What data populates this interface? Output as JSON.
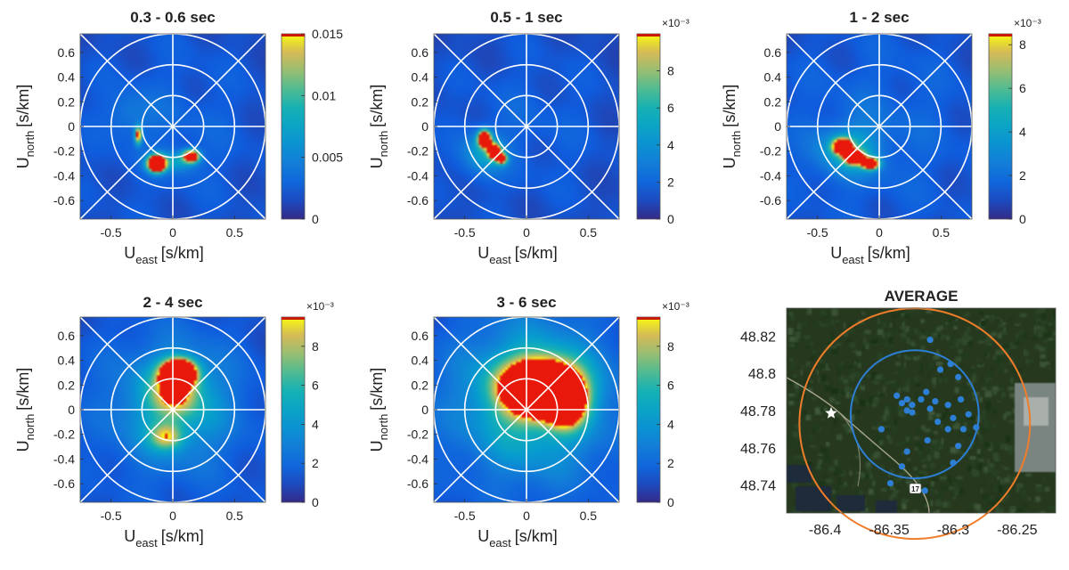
{
  "chart_data": [
    {
      "type": "heatmap",
      "title": "0.3 - 0.6 sec",
      "title_color": "#1560a8",
      "xlabel": "U",
      "xlabel_sub": "east",
      "xlabel_unit": "[s/km]",
      "ylabel": "U",
      "ylabel_sub": "north",
      "ylabel_unit": "[s/km]",
      "xlim": [
        -0.75,
        0.75
      ],
      "ylim": [
        -0.75,
        0.75
      ],
      "x_ticks": [
        -0.5,
        0,
        0.5
      ],
      "x_tick_labels": [
        "-0.5",
        "0",
        "0.5"
      ],
      "y_ticks": [
        0.6,
        0.4,
        0.2,
        0,
        -0.2,
        -0.4,
        -0.6
      ],
      "y_tick_labels": [
        "0.6",
        "0.4",
        "0.2",
        "0",
        "-0.2",
        "-0.4",
        "-0.6"
      ],
      "colorbar": {
        "min": 0,
        "max": 0.015,
        "ticks": [
          0.015,
          0.01,
          0.005,
          0
        ],
        "tick_labels": [
          "0.015",
          "0.01",
          "0.005",
          "0"
        ],
        "exponent_label": ""
      },
      "grid": {
        "rings": [
          0.25,
          0.5,
          0.75
        ],
        "spokes_deg": [
          0,
          45,
          90,
          135
        ]
      },
      "background_level": 0.27,
      "peaks": [
        {
          "x": -0.13,
          "y": -0.3,
          "amplitude": 1.9,
          "sigma_x": 0.05,
          "sigma_y": 0.045
        },
        {
          "x": 0.15,
          "y": -0.24,
          "amplitude": 1.3,
          "sigma_x": 0.045,
          "sigma_y": 0.035
        },
        {
          "x": -0.28,
          "y": -0.07,
          "amplitude": 0.95,
          "sigma_x": 0.02,
          "sigma_y": 0.05
        },
        {
          "x": 0.05,
          "y": -0.28,
          "amplitude": 0.35,
          "sigma_x": 0.1,
          "sigma_y": 0.06
        },
        {
          "x": -0.35,
          "y": 0.1,
          "amplitude": 0.15,
          "sigma_x": 0.12,
          "sigma_y": 0.12
        }
      ]
    },
    {
      "type": "heatmap",
      "title": "0.5 - 1 sec",
      "title_color": "#cc4400",
      "xlabel": "U",
      "xlabel_sub": "east",
      "xlabel_unit": "[s/km]",
      "ylabel": "U",
      "ylabel_sub": "north",
      "ylabel_unit": "[s/km]",
      "xlim": [
        -0.75,
        0.75
      ],
      "ylim": [
        -0.75,
        0.75
      ],
      "x_ticks": [
        -0.5,
        0,
        0.5
      ],
      "x_tick_labels": [
        "-0.5",
        "0",
        "0.5"
      ],
      "y_ticks": [
        0.6,
        0.4,
        0.2,
        0,
        -0.2,
        -0.4,
        -0.6
      ],
      "y_tick_labels": [
        "0.6",
        "0.4",
        "0.2",
        "0",
        "-0.2",
        "-0.4",
        "-0.6"
      ],
      "colorbar": {
        "min": 0,
        "max": 10,
        "ticks": [
          8,
          6,
          4,
          2,
          0
        ],
        "tick_labels": [
          "8",
          "6",
          "4",
          "2",
          "0"
        ],
        "exponent_label": "×10⁻³"
      },
      "grid": {
        "rings": [
          0.25,
          0.5,
          0.75
        ],
        "spokes_deg": [
          0,
          45,
          90,
          135
        ]
      },
      "background_level": 0.25,
      "peaks": [
        {
          "x": -0.34,
          "y": -0.1,
          "amplitude": 1.6,
          "sigma_x": 0.035,
          "sigma_y": 0.045
        },
        {
          "x": -0.26,
          "y": -0.2,
          "amplitude": 1.5,
          "sigma_x": 0.035,
          "sigma_y": 0.04
        },
        {
          "x": -0.2,
          "y": -0.26,
          "amplitude": 1.1,
          "sigma_x": 0.03,
          "sigma_y": 0.03
        },
        {
          "x": -0.35,
          "y": -0.22,
          "amplitude": 0.35,
          "sigma_x": 0.12,
          "sigma_y": 0.12
        }
      ]
    },
    {
      "type": "heatmap",
      "title": "1 - 2 sec",
      "title_color": "#e8a317",
      "xlabel": "U",
      "xlabel_sub": "east",
      "xlabel_unit": "[s/km]",
      "ylabel": "U",
      "ylabel_sub": "north",
      "ylabel_unit": "[s/km]",
      "xlim": [
        -0.75,
        0.75
      ],
      "ylim": [
        -0.75,
        0.75
      ],
      "x_ticks": [
        -0.5,
        0,
        0.5
      ],
      "x_tick_labels": [
        "-0.5",
        "0",
        "0.5"
      ],
      "y_ticks": [
        0.6,
        0.4,
        0.2,
        0,
        -0.2,
        -0.4,
        -0.6
      ],
      "y_tick_labels": [
        "0.6",
        "0.4",
        "0.2",
        "0",
        "-0.2",
        "-0.4",
        "-0.6"
      ],
      "colorbar": {
        "min": 0,
        "max": 8.5,
        "ticks": [
          8,
          6,
          4,
          2,
          0
        ],
        "tick_labels": [
          "8",
          "6",
          "4",
          "2",
          "0"
        ],
        "exponent_label": "×10⁻³"
      },
      "grid": {
        "rings": [
          0.25,
          0.5,
          0.75
        ],
        "spokes_deg": [
          0,
          45,
          90,
          135
        ]
      },
      "background_level": 0.3,
      "peaks": [
        {
          "x": -0.3,
          "y": -0.16,
          "amplitude": 1.6,
          "sigma_x": 0.05,
          "sigma_y": 0.04
        },
        {
          "x": -0.2,
          "y": -0.25,
          "amplitude": 1.6,
          "sigma_x": 0.05,
          "sigma_y": 0.035
        },
        {
          "x": -0.07,
          "y": -0.3,
          "amplitude": 1.5,
          "sigma_x": 0.045,
          "sigma_y": 0.03
        },
        {
          "x": -0.25,
          "y": -0.2,
          "amplitude": 0.4,
          "sigma_x": 0.18,
          "sigma_y": 0.14
        }
      ]
    },
    {
      "type": "heatmap",
      "title": "2 - 4 sec",
      "title_color": "#6a1e8f",
      "xlabel": "U",
      "xlabel_sub": "east",
      "xlabel_unit": "[s/km]",
      "ylabel": "U",
      "ylabel_sub": "north",
      "ylabel_unit": "[s/km]",
      "xlim": [
        -0.75,
        0.75
      ],
      "ylim": [
        -0.75,
        0.75
      ],
      "x_ticks": [
        -0.5,
        0,
        0.5
      ],
      "x_tick_labels": [
        "-0.5",
        "0",
        "0.5"
      ],
      "y_ticks": [
        0.6,
        0.4,
        0.2,
        0,
        -0.2,
        -0.4,
        -0.6
      ],
      "y_tick_labels": [
        "0.6",
        "0.4",
        "0.2",
        "0",
        "-0.2",
        "-0.4",
        "-0.6"
      ],
      "colorbar": {
        "min": 0,
        "max": 9.5,
        "ticks": [
          8,
          6,
          4,
          2,
          0
        ],
        "tick_labels": [
          "8",
          "6",
          "4",
          "2",
          "0"
        ],
        "exponent_label": "×10⁻³"
      },
      "grid": {
        "rings": [
          0.25,
          0.5,
          0.75
        ],
        "spokes_deg": [
          0,
          45,
          90,
          135
        ]
      },
      "background_level": 0.3,
      "peaks": [
        {
          "x": 0.05,
          "y": 0.3,
          "amplitude": 1.9,
          "sigma_x": 0.09,
          "sigma_y": 0.07
        },
        {
          "x": 0.02,
          "y": 0.15,
          "amplitude": 0.6,
          "sigma_x": 0.12,
          "sigma_y": 0.12
        },
        {
          "x": -0.05,
          "y": -0.22,
          "amplitude": 0.55,
          "sigma_x": 0.09,
          "sigma_y": 0.07
        },
        {
          "x": 0.0,
          "y": 0.05,
          "amplitude": 0.4,
          "sigma_x": 0.3,
          "sigma_y": 0.3
        }
      ]
    },
    {
      "type": "heatmap",
      "title": "3 - 6 sec",
      "title_color": "#6aa832",
      "xlabel": "U",
      "xlabel_sub": "east",
      "xlabel_unit": "[s/km]",
      "ylabel": "U",
      "ylabel_sub": "north",
      "ylabel_unit": "[s/km]",
      "xlim": [
        -0.75,
        0.75
      ],
      "ylim": [
        -0.75,
        0.75
      ],
      "x_ticks": [
        -0.5,
        0,
        0.5
      ],
      "x_tick_labels": [
        "-0.5",
        "0",
        "0.5"
      ],
      "y_ticks": [
        0.6,
        0.4,
        0.2,
        0,
        -0.2,
        -0.4,
        -0.6
      ],
      "y_tick_labels": [
        "0.6",
        "0.4",
        "0.2",
        "0",
        "-0.2",
        "-0.4",
        "-0.6"
      ],
      "colorbar": {
        "min": 0,
        "max": 9.5,
        "ticks": [
          8,
          6,
          4,
          2,
          0
        ],
        "tick_labels": [
          "8",
          "6",
          "4",
          "2",
          "0"
        ],
        "exponent_label": "×10⁻³"
      },
      "grid": {
        "rings": [
          0.25,
          0.5,
          0.75
        ],
        "spokes_deg": [
          0,
          45,
          90,
          135
        ]
      },
      "background_level": 0.3,
      "peaks": [
        {
          "x": 0.12,
          "y": 0.18,
          "amplitude": 2.0,
          "sigma_x": 0.2,
          "sigma_y": 0.14
        },
        {
          "x": 0.32,
          "y": 0.05,
          "amplitude": 1.2,
          "sigma_x": 0.1,
          "sigma_y": 0.12
        },
        {
          "x": 0.05,
          "y": 0.1,
          "amplitude": 0.5,
          "sigma_x": 0.4,
          "sigma_y": 0.4
        }
      ]
    }
  ],
  "map_panel": {
    "title": "AVERAGE",
    "y_tick_labels": [
      "48.82",
      "48.8",
      "48.78",
      "48.76",
      "48.74"
    ],
    "y_ticks": [
      48.82,
      48.8,
      48.78,
      48.76,
      48.74
    ],
    "x_tick_labels": [
      "-86.4",
      "-86.35",
      "-86.3",
      "-86.25"
    ],
    "x_ticks": [
      -86.4,
      -86.35,
      -86.3,
      -86.25
    ],
    "xlim": [
      -86.43,
      -86.22
    ],
    "ylim": [
      48.725,
      48.835
    ],
    "road_label": "17",
    "outer_circle": {
      "lon": -86.33,
      "lat": 48.773,
      "radius_lon": 0.09,
      "color": "#f07d2a"
    },
    "inner_circle": {
      "lon": -86.33,
      "lat": 48.778,
      "radius_lon": 0.05,
      "color": "#2d7fd6"
    },
    "station_color": "#2d7fd6",
    "stations": [
      [
        -86.318,
        48.818
      ],
      [
        -86.31,
        48.802
      ],
      [
        -86.302,
        48.805
      ],
      [
        -86.296,
        48.798
      ],
      [
        -86.344,
        48.788
      ],
      [
        -86.34,
        48.784
      ],
      [
        -86.336,
        48.786
      ],
      [
        -86.332,
        48.783
      ],
      [
        -86.336,
        48.78
      ],
      [
        -86.332,
        48.779
      ],
      [
        -86.325,
        48.786
      ],
      [
        -86.321,
        48.79
      ],
      [
        -86.318,
        48.781
      ],
      [
        -86.314,
        48.785
      ],
      [
        -86.304,
        48.783
      ],
      [
        -86.294,
        48.786
      ],
      [
        -86.288,
        48.778
      ],
      [
        -86.3,
        48.776
      ],
      [
        -86.312,
        48.774
      ],
      [
        -86.304,
        48.77
      ],
      [
        -86.292,
        48.77
      ],
      [
        -86.282,
        48.771
      ],
      [
        -86.296,
        48.761
      ],
      [
        -86.3,
        48.752
      ],
      [
        -86.32,
        48.764
      ],
      [
        -86.356,
        48.77
      ],
      [
        -86.336,
        48.758
      ],
      [
        -86.34,
        48.75
      ],
      [
        -86.349,
        48.741
      ],
      [
        -86.322,
        48.737
      ]
    ]
  }
}
